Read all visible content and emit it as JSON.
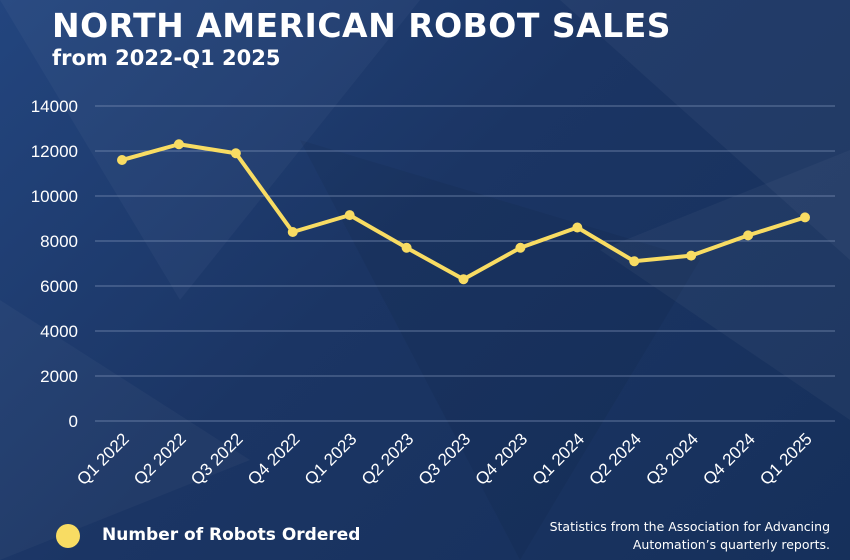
{
  "colors": {
    "background": "#1c3563",
    "line": "#f8dc63",
    "gridline": "#7f93b8",
    "text": "#ffffff"
  },
  "header": {
    "title": "NORTH AMERICAN ROBOT SALES",
    "subtitle": "from 2022-Q1 2025"
  },
  "legend": {
    "label": "Number of Robots Ordered"
  },
  "source_note": {
    "line1": "Statistics from the Association for Advancing",
    "line2": "Automation’s quarterly reports."
  },
  "chart_data": {
    "type": "line",
    "title": "NORTH AMERICAN ROBOT SALES",
    "subtitle": "from 2022-Q1 2025",
    "categories": [
      "Q1 2022",
      "Q2 2022",
      "Q3 2022",
      "Q4 2022",
      "Q1 2023",
      "Q2 2023",
      "Q3 2023",
      "Q4 2023",
      "Q1 2024",
      "Q2 2024",
      "Q3 2024",
      "Q4 2024",
      "Q1 2025"
    ],
    "series": [
      {
        "name": "Number of Robots Ordered",
        "values": [
          11600,
          12300,
          11900,
          8400,
          9150,
          7700,
          6300,
          7700,
          8600,
          7100,
          7350,
          8250,
          9050
        ]
      }
    ],
    "ylim": [
      0,
      14000
    ],
    "yticks": [
      0,
      2000,
      4000,
      6000,
      8000,
      10000,
      12000,
      14000
    ],
    "grid": true,
    "legend_position": "bottom-left",
    "xlabel": "",
    "ylabel": ""
  }
}
